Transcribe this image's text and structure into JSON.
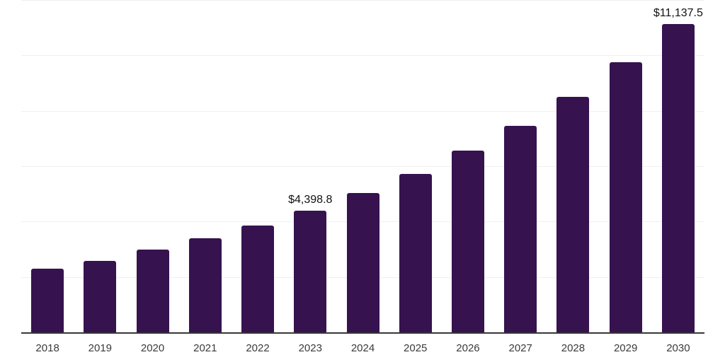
{
  "chart_data": {
    "type": "bar",
    "title": "",
    "xlabel": "",
    "ylabel": "",
    "categories": [
      "2018",
      "2019",
      "2020",
      "2021",
      "2022",
      "2023",
      "2024",
      "2025",
      "2026",
      "2027",
      "2028",
      "2029",
      "2030"
    ],
    "values": [
      2310,
      2590,
      3000,
      3400,
      3860,
      4398.8,
      5025,
      5715,
      6550,
      7465,
      8505,
      9755,
      11137.5
    ],
    "data_labels": {
      "2023": "$4,398.8",
      "2030": "$11,137.5"
    },
    "ylim": [
      0,
      12000
    ],
    "gridline_step": 2000,
    "grid": "horizontal",
    "legend": "none",
    "colors": {
      "bar": "#36124F",
      "gridline": "#f0f0f0",
      "axis_line": "#383838",
      "value_label": "#111111",
      "tick_label": "#3a3a3a",
      "background": "#ffffff"
    }
  }
}
